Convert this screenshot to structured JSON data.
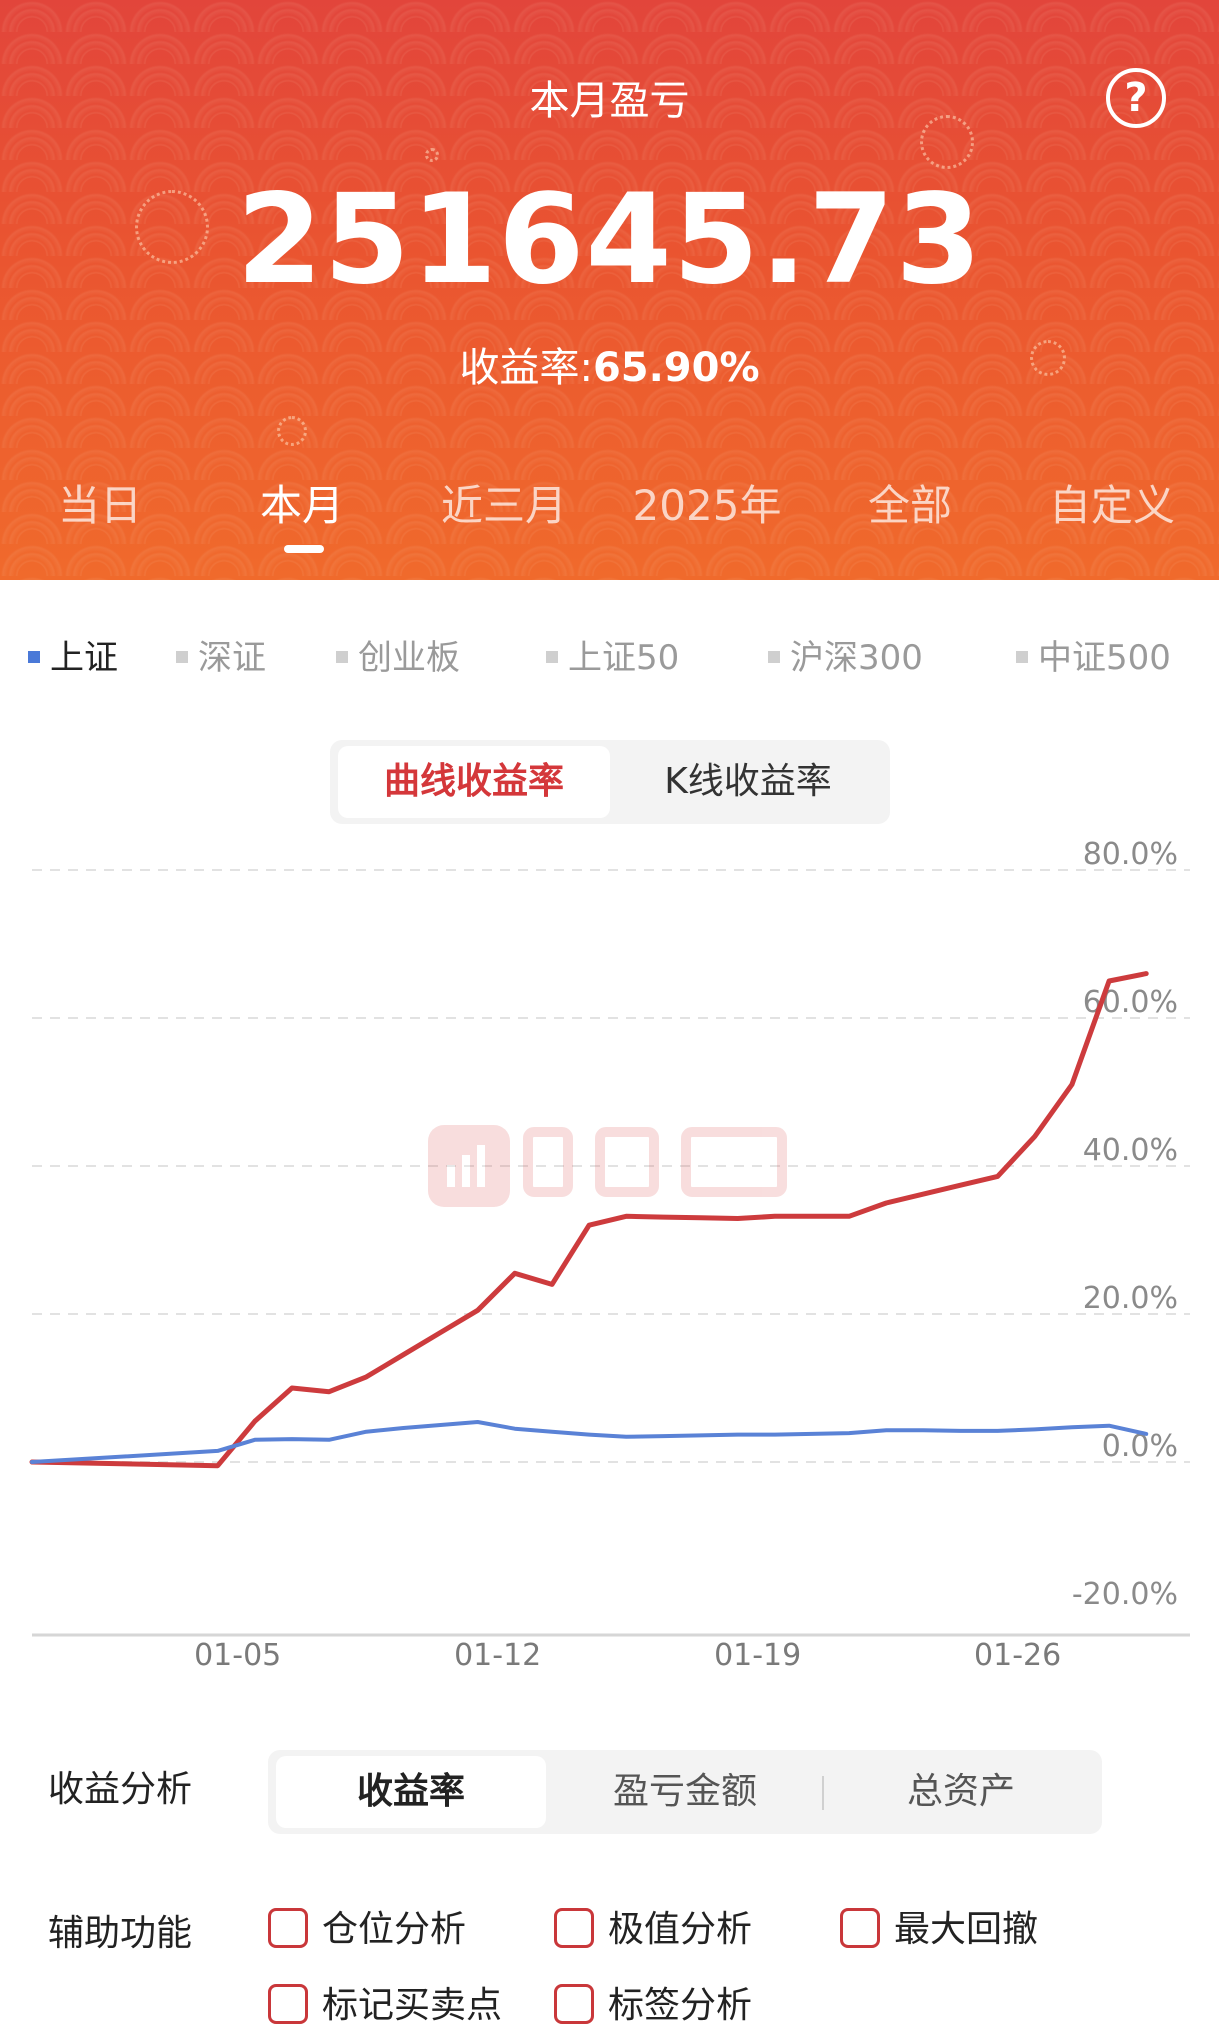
{
  "header": {
    "title": "本月盈亏",
    "help_symbol": "?",
    "amount": "251645.73",
    "rate_label": "收益率:",
    "rate_value": "65.90%"
  },
  "period_tabs": [
    {
      "label": "当日",
      "active": false
    },
    {
      "label": "本月",
      "active": true
    },
    {
      "label": "近三月",
      "active": false
    },
    {
      "label": "2025年",
      "active": false
    },
    {
      "label": "全部",
      "active": false
    },
    {
      "label": "自定义",
      "active": false
    }
  ],
  "index_tabs": [
    {
      "label": "上证",
      "active": true
    },
    {
      "label": "深证",
      "active": false
    },
    {
      "label": "创业板",
      "active": false
    },
    {
      "label": "上证50",
      "active": false
    },
    {
      "label": "沪深300",
      "active": false
    },
    {
      "label": "中证500",
      "active": false
    }
  ],
  "chart_mode": {
    "curve_label": "曲线收益率",
    "kline_label": "K线收益率",
    "active": "curve"
  },
  "chart_data": {
    "type": "line",
    "x_ticks": [
      "01-05",
      "01-12",
      "01-19",
      "01-26"
    ],
    "y_ticks": [
      "80.0%",
      "60.0%",
      "40.0%",
      "20.0%",
      "0.0%",
      "-20.0%"
    ],
    "ylim": [
      -20,
      80
    ],
    "grid": true,
    "colors": {
      "portfolio": "#cd3b3d",
      "index": "#5a82d6"
    },
    "series": [
      {
        "x": [
          0,
          5,
          6,
          7,
          8,
          9,
          10,
          11,
          12,
          13,
          14,
          15,
          16,
          17,
          18,
          19,
          20,
          21,
          22,
          23,
          24,
          25,
          26,
          27,
          28,
          29,
          30
        ],
        "values": [
          0,
          -0.5,
          5.5,
          10,
          9.5,
          11.5,
          14.5,
          17.5,
          20.5,
          25.5,
          24,
          32,
          33.2,
          33.1,
          33,
          32.9,
          33.2,
          33.2,
          33.2,
          35,
          36.2,
          37.4,
          38.6,
          44,
          51,
          65,
          66
        ]
      },
      {
        "x": [
          0,
          5,
          6,
          7,
          8,
          9,
          10,
          11,
          12,
          13,
          14,
          15,
          16,
          17,
          18,
          19,
          20,
          21,
          22,
          23,
          24,
          25,
          26,
          27,
          28,
          29,
          30
        ],
        "values": [
          0,
          1.5,
          3,
          3.1,
          3,
          4.1,
          4.6,
          5,
          5.4,
          4.5,
          4.1,
          3.7,
          3.4,
          3.5,
          3.6,
          3.7,
          3.7,
          3.8,
          3.9,
          4.3,
          4.3,
          4.2,
          4.2,
          4.4,
          4.7,
          4.9,
          3.8
        ]
      }
    ]
  },
  "analysis": {
    "label": "收益分析",
    "options": [
      {
        "label": "收益率",
        "active": true
      },
      {
        "label": "盈亏金额",
        "active": false
      },
      {
        "label": "总资产",
        "active": false
      }
    ]
  },
  "aux": {
    "label": "辅助功能",
    "options": [
      "仓位分析",
      "极值分析",
      "最大回撤",
      "标记买卖点",
      "标签分析"
    ]
  }
}
